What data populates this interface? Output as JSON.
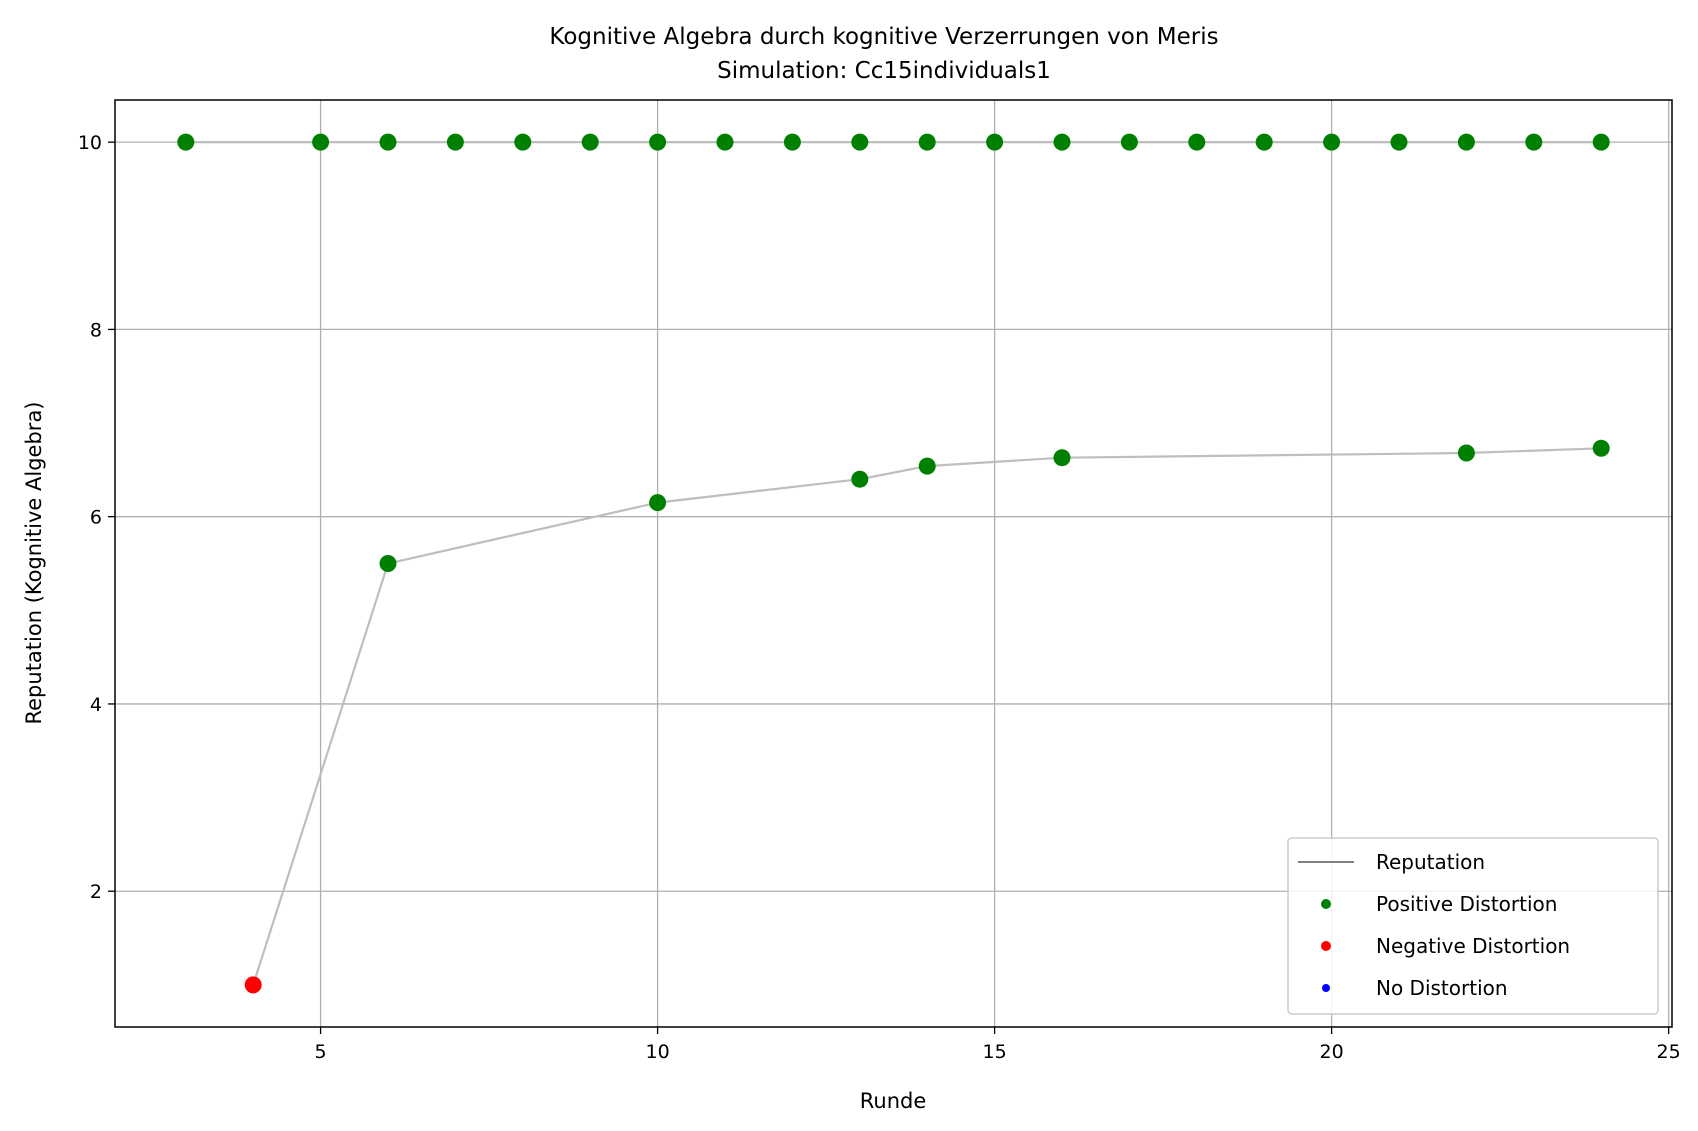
{
  "chart_data": {
    "type": "line",
    "title": "Kognitive Algebra durch kognitive Verzerrungen von Meris",
    "subtitle": "Simulation: Cc15individuals1",
    "xlabel": "Runde",
    "ylabel": "Reputation (Kognitive Algebra)",
    "xlim": [
      1.95,
      25.05
    ],
    "ylim": [
      0.55,
      10.45
    ],
    "xticks": [
      5,
      10,
      15,
      20,
      25
    ],
    "yticks": [
      2,
      4,
      6,
      8,
      10
    ],
    "grid": true,
    "legend_position": "lower right",
    "legend": [
      "Reputation",
      "Positive Distortion",
      "Negative Distortion",
      "No Distortion"
    ],
    "colors": {
      "reputation": "#bebebe",
      "legend_line": "#808080",
      "positive": "#008000",
      "negative": "#ff0000",
      "none": "#0000ff",
      "grid": "#b0b0b0"
    },
    "series": [
      {
        "name": "Reputation",
        "kind": "line",
        "points": [
          [
            4,
            1.0
          ],
          [
            6,
            5.5
          ],
          [
            10,
            6.15
          ],
          [
            13,
            6.4
          ],
          [
            14,
            6.54
          ],
          [
            16,
            6.63
          ],
          [
            22,
            6.68
          ],
          [
            24,
            6.73
          ]
        ]
      },
      {
        "name": "Reputation",
        "kind": "line",
        "points": [
          [
            3,
            10
          ],
          [
            5,
            10
          ],
          [
            6,
            10
          ],
          [
            7,
            10
          ],
          [
            8,
            10
          ],
          [
            9,
            10
          ],
          [
            10,
            10
          ],
          [
            11,
            10
          ],
          [
            12,
            10
          ],
          [
            13,
            10
          ],
          [
            14,
            10
          ],
          [
            15,
            10
          ],
          [
            16,
            10
          ],
          [
            17,
            10
          ],
          [
            18,
            10
          ],
          [
            19,
            10
          ],
          [
            20,
            10
          ],
          [
            21,
            10
          ],
          [
            22,
            10
          ],
          [
            23,
            10
          ],
          [
            24,
            10
          ]
        ]
      },
      {
        "name": "Positive Distortion",
        "kind": "scatter",
        "points": [
          [
            3,
            10
          ],
          [
            5,
            10
          ],
          [
            6,
            10
          ],
          [
            7,
            10
          ],
          [
            8,
            10
          ],
          [
            9,
            10
          ],
          [
            10,
            10
          ],
          [
            11,
            10
          ],
          [
            12,
            10
          ],
          [
            13,
            10
          ],
          [
            14,
            10
          ],
          [
            15,
            10
          ],
          [
            16,
            10
          ],
          [
            17,
            10
          ],
          [
            18,
            10
          ],
          [
            19,
            10
          ],
          [
            20,
            10
          ],
          [
            21,
            10
          ],
          [
            22,
            10
          ],
          [
            23,
            10
          ],
          [
            24,
            10
          ],
          [
            6,
            5.5
          ],
          [
            10,
            6.15
          ],
          [
            13,
            6.4
          ],
          [
            14,
            6.54
          ],
          [
            16,
            6.63
          ],
          [
            22,
            6.68
          ],
          [
            24,
            6.73
          ]
        ]
      },
      {
        "name": "Negative Distortion",
        "kind": "scatter",
        "points": [
          [
            4,
            1.0
          ]
        ]
      },
      {
        "name": "No Distortion",
        "kind": "scatter",
        "points": []
      }
    ]
  }
}
